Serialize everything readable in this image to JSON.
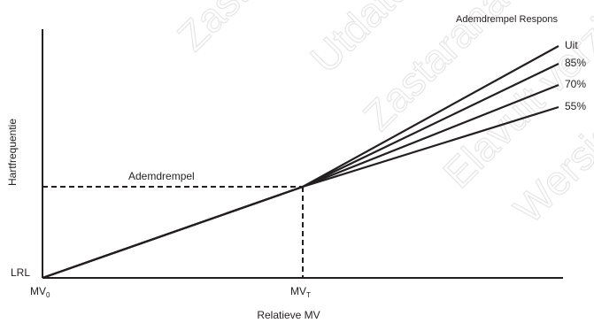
{
  "chart_data": {
    "type": "line",
    "xlabel": "Relatieve MV",
    "ylabel": "Hartfrequentie",
    "x_ticks": [
      {
        "base": "MV",
        "sub": "0",
        "x": 0
      },
      {
        "base": "MV",
        "sub": "T",
        "x": 1
      }
    ],
    "y_ticks": [
      {
        "label": "LRL",
        "y": 0
      }
    ],
    "threshold": {
      "label": "Ademdrempel",
      "x": 1,
      "y": 1
    },
    "legend_title": "Ademdrempel Respons",
    "series": [
      {
        "name": "Uit",
        "x": [
          0,
          1,
          2.0
        ],
        "y": [
          0,
          1,
          2.0
        ]
      },
      {
        "name": "85%",
        "x": [
          0,
          1,
          2.0
        ],
        "y": [
          0,
          1,
          1.85
        ]
      },
      {
        "name": "70%",
        "x": [
          0,
          1,
          2.0
        ],
        "y": [
          0,
          1,
          1.7
        ]
      },
      {
        "name": "55%",
        "x": [
          0,
          1,
          2.0
        ],
        "y": [
          0,
          1,
          1.55
        ]
      }
    ],
    "xlim": [
      0,
      2.0
    ],
    "ylim": [
      0,
      2.0
    ],
    "watermarks": [
      "Zastaralá verze",
      "Utdateret version",
      "Zastarana verzija",
      "Elavult verzió",
      "Wersja nieaktualna"
    ],
    "colors": {
      "line": "#231f20",
      "watermark": "#e6e6e6"
    }
  }
}
